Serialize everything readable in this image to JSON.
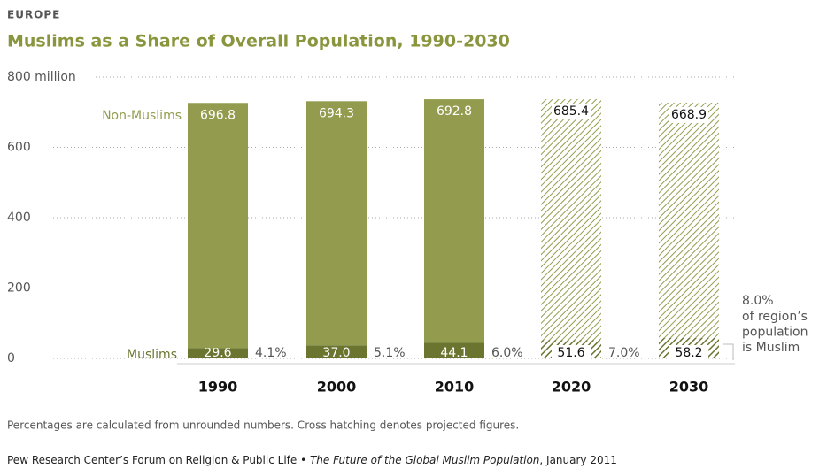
{
  "chart_data": {
    "type": "stacked-bar",
    "kicker": "EUROPE",
    "title": "Muslims as a Share of Overall Population, 1990-2030",
    "categories": [
      "1990",
      "2000",
      "2010",
      "2020",
      "2030"
    ],
    "projected": [
      false,
      false,
      false,
      true,
      true
    ],
    "series": [
      {
        "name": "Muslims",
        "color": "#6b7530",
        "values": [
          29.6,
          37.0,
          44.1,
          51.6,
          58.2
        ],
        "value_labels": [
          "29.6",
          "37.0",
          "44.1",
          "51.6",
          "58.2"
        ]
      },
      {
        "name": "Non-Muslims",
        "color": "#939c4e",
        "values": [
          696.8,
          694.3,
          692.8,
          685.4,
          668.9
        ],
        "value_labels": [
          "696.8",
          "694.3",
          "692.8",
          "685.4",
          "668.9"
        ]
      }
    ],
    "shares": [
      4.1,
      5.1,
      6.0,
      7.0,
      8.0
    ],
    "share_labels": [
      "4.1%",
      "5.1%",
      "6.0%",
      "7.0%",
      "8.0%"
    ],
    "share_annotation": [
      "of region’s",
      "population",
      "is Muslim"
    ],
    "ylim": [
      0,
      800
    ],
    "yticks": [
      0,
      200,
      400,
      600,
      {
        "value": 800,
        "label": "800 million"
      }
    ],
    "grid": true,
    "note": "Percentages are calculated from unrounded numbers. Cross hatching denotes projected figures.",
    "source": [
      "Pew Research Center’s Forum on Religion & Public Life • ",
      "The Future of the Global Muslim Population",
      ", January 2011"
    ]
  }
}
